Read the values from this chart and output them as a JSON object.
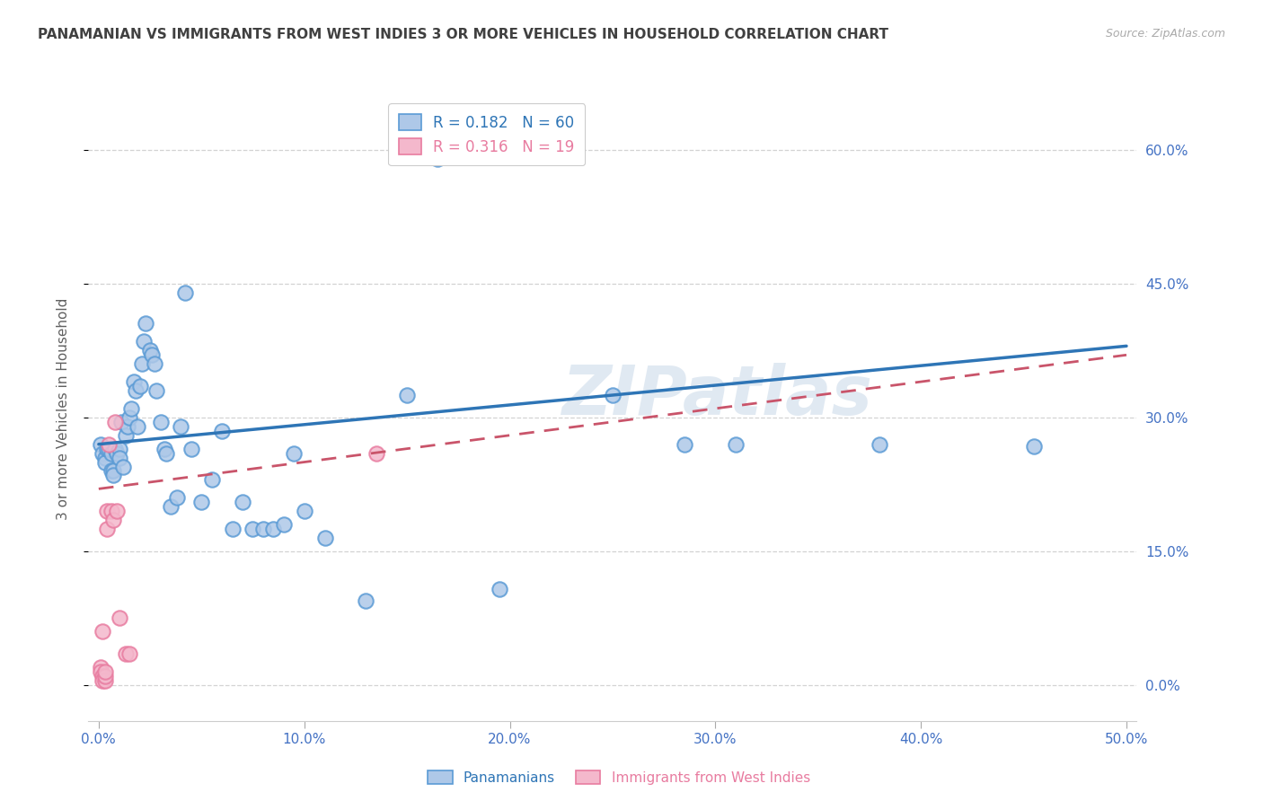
{
  "title": "PANAMANIAN VS IMMIGRANTS FROM WEST INDIES 3 OR MORE VEHICLES IN HOUSEHOLD CORRELATION CHART",
  "source": "Source: ZipAtlas.com",
  "ylabel": "3 or more Vehicles in Household",
  "xlim": [
    -0.005,
    0.505
  ],
  "ylim": [
    -0.04,
    0.66
  ],
  "xticks": [
    0.0,
    0.1,
    0.2,
    0.3,
    0.4,
    0.5
  ],
  "xticklabels": [
    "0.0%",
    "10.0%",
    "20.0%",
    "30.0%",
    "40.0%",
    "50.0%"
  ],
  "yticks": [
    0.0,
    0.15,
    0.3,
    0.45,
    0.6
  ],
  "right_yticklabels": [
    "0.0%",
    "15.0%",
    "30.0%",
    "45.0%",
    "60.0%"
  ],
  "blue_color": "#aec8e8",
  "pink_color": "#f4b8cc",
  "blue_edge_color": "#5b9bd5",
  "pink_edge_color": "#e87ca0",
  "blue_line_color": "#2e75b6",
  "pink_line_color": "#c9546a",
  "legend_R1": "0.182",
  "legend_N1": "60",
  "legend_R2": "0.316",
  "legend_N2": "19",
  "watermark": "ZIPatlas",
  "blue_points_x": [
    0.001,
    0.002,
    0.003,
    0.003,
    0.004,
    0.005,
    0.006,
    0.006,
    0.007,
    0.007,
    0.008,
    0.009,
    0.01,
    0.01,
    0.011,
    0.012,
    0.013,
    0.014,
    0.015,
    0.016,
    0.017,
    0.018,
    0.019,
    0.02,
    0.021,
    0.022,
    0.023,
    0.025,
    0.026,
    0.027,
    0.028,
    0.03,
    0.032,
    0.033,
    0.035,
    0.038,
    0.04,
    0.042,
    0.045,
    0.05,
    0.055,
    0.06,
    0.065,
    0.07,
    0.075,
    0.08,
    0.085,
    0.09,
    0.095,
    0.1,
    0.11,
    0.13,
    0.15,
    0.165,
    0.195,
    0.25,
    0.285,
    0.31,
    0.38,
    0.455
  ],
  "blue_points_y": [
    0.27,
    0.26,
    0.255,
    0.25,
    0.265,
    0.265,
    0.24,
    0.26,
    0.24,
    0.235,
    0.265,
    0.26,
    0.265,
    0.255,
    0.295,
    0.245,
    0.28,
    0.29,
    0.3,
    0.31,
    0.34,
    0.33,
    0.29,
    0.335,
    0.36,
    0.385,
    0.405,
    0.375,
    0.37,
    0.36,
    0.33,
    0.295,
    0.265,
    0.26,
    0.2,
    0.21,
    0.29,
    0.44,
    0.265,
    0.205,
    0.23,
    0.285,
    0.175,
    0.205,
    0.175,
    0.175,
    0.175,
    0.18,
    0.26,
    0.195,
    0.165,
    0.095,
    0.325,
    0.59,
    0.108,
    0.325,
    0.27,
    0.27,
    0.27,
    0.268
  ],
  "pink_points_x": [
    0.001,
    0.001,
    0.002,
    0.002,
    0.002,
    0.003,
    0.003,
    0.003,
    0.004,
    0.004,
    0.005,
    0.006,
    0.007,
    0.008,
    0.009,
    0.01,
    0.013,
    0.015,
    0.135
  ],
  "pink_points_y": [
    0.02,
    0.015,
    0.01,
    0.005,
    0.06,
    0.005,
    0.01,
    0.015,
    0.195,
    0.175,
    0.27,
    0.195,
    0.185,
    0.295,
    0.195,
    0.075,
    0.035,
    0.035,
    0.26
  ],
  "blue_trend_start_y": 0.27,
  "blue_trend_end_y": 0.38,
  "pink_trend_start_y": 0.22,
  "pink_trend_end_y": 0.37,
  "grid_color": "#d3d3d3",
  "title_color": "#404040",
  "axis_label_color": "#4472c4",
  "background_color": "#ffffff"
}
